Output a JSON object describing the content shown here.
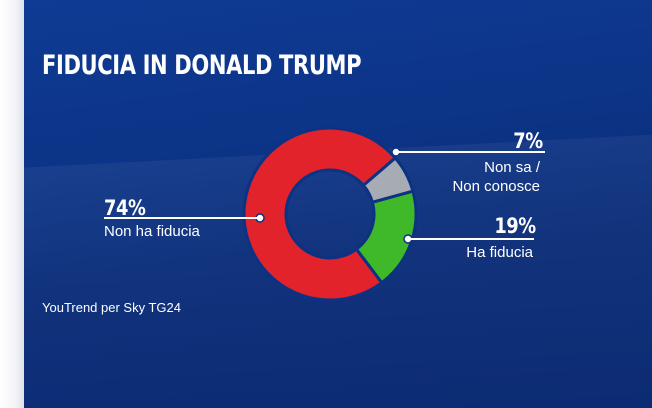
{
  "title": "FIDUCIA IN DONALD TRUMP",
  "source": "YouTrend per Sky TG24",
  "chart_data": {
    "type": "pie",
    "donut": true,
    "title": "FIDUCIA IN DONALD TRUMP",
    "slices": [
      {
        "label": "Non ha fiducia",
        "value": 74,
        "display": "74%",
        "color": "#e3232b"
      },
      {
        "label": "Non sa / Non conosce",
        "value": 7,
        "display": "7%",
        "color": "#a7acb4"
      },
      {
        "label": "Ha fiducia",
        "value": 19,
        "display": "19%",
        "color": "#3fb829"
      }
    ]
  }
}
